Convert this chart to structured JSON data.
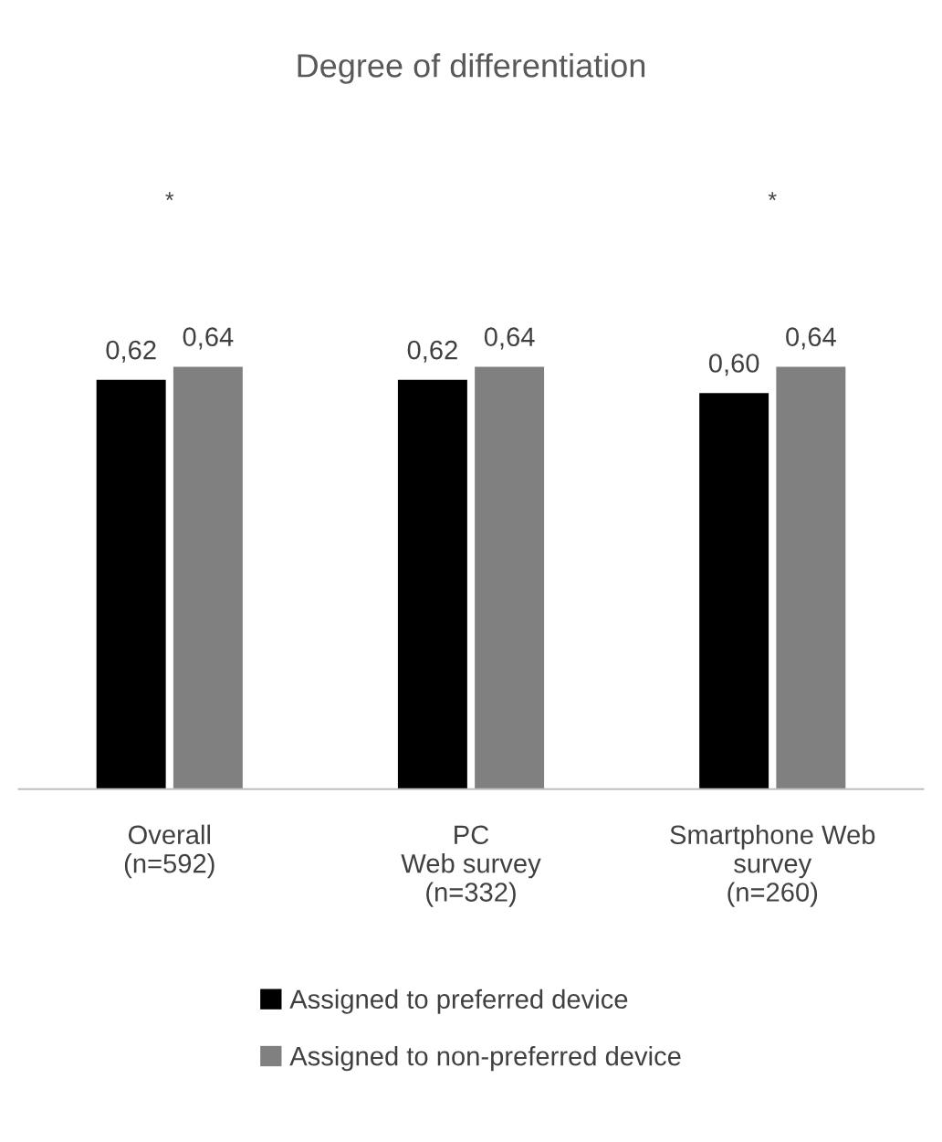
{
  "chart_data": {
    "type": "bar",
    "title": "Degree of differentiation",
    "categories": [
      "Overall\n(n=592)",
      "PC\nWeb survey\n(n=332)",
      "Smartphone Web\nsurvey\n(n=260)"
    ],
    "series": [
      {
        "name": "Assigned to preferred device",
        "color": "#000000",
        "values": [
          0.62,
          0.62,
          0.6
        ],
        "value_labels": [
          "0,62",
          "0,62",
          "0,60"
        ]
      },
      {
        "name": "Assigned to non-preferred device",
        "color": "#808080",
        "values": [
          0.64,
          0.64,
          0.64
        ],
        "value_labels": [
          "0,64",
          "0,64",
          "0,64"
        ]
      }
    ],
    "tick_labels": "x",
    "annotations": [
      "*",
      "*"
    ],
    "grid": false,
    "legend": "bottom"
  }
}
